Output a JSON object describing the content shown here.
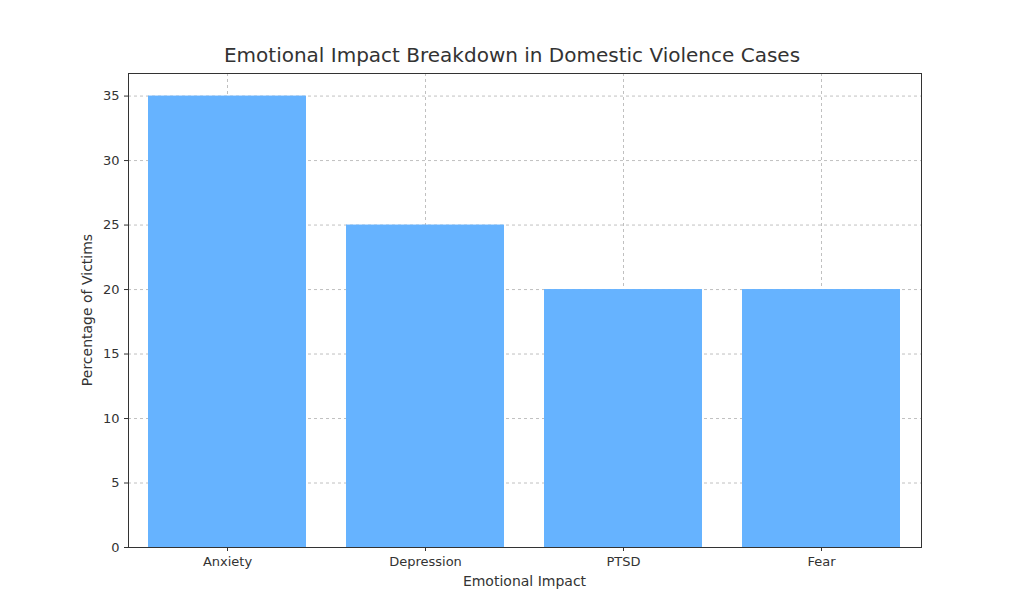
{
  "chart_data": {
    "type": "bar",
    "title": "Emotional Impact Breakdown in Domestic Violence Cases",
    "x_label": "Emotional Impact",
    "y_label": "Percentage of Victims",
    "categories": [
      "Anxiety",
      "Depression",
      "PTSD",
      "Fear"
    ],
    "values": [
      35,
      25,
      20,
      20
    ],
    "color": "#66b3ff",
    "ylim": [
      0,
      36.75
    ],
    "yticks": [
      0,
      5,
      10,
      15,
      20,
      25,
      30,
      35
    ],
    "grid": true
  }
}
